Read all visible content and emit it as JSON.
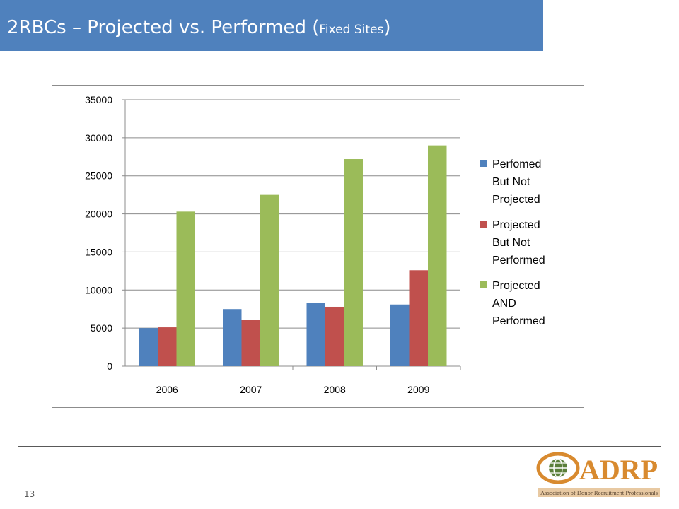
{
  "slide": {
    "title_main": "2RBCs – Projected vs. Performed (",
    "title_small": "Fixed Sites",
    "title_close": ")",
    "page_number": "13"
  },
  "logo": {
    "text": "ADRP",
    "tagline": "Association of Donor Recruitment Professionals"
  },
  "colors": {
    "title_bar": "#4f81bd",
    "series": [
      "#4f81bd",
      "#c0504d",
      "#9bbb59"
    ]
  },
  "chart_data": {
    "type": "bar",
    "title": "",
    "xlabel": "",
    "ylabel": "",
    "categories": [
      "2006",
      "2007",
      "2008",
      "2009"
    ],
    "ylim": [
      0,
      35000
    ],
    "yticks": [
      0,
      5000,
      10000,
      15000,
      20000,
      25000,
      30000,
      35000
    ],
    "grid": true,
    "legend_position": "right",
    "series": [
      {
        "name": "Perfomed But Not Projected",
        "legend_lines": [
          "Perfomed",
          "But Not",
          "Projected"
        ],
        "values": [
          5000,
          7500,
          8300,
          8100
        ]
      },
      {
        "name": "Projected But Not Performed",
        "legend_lines": [
          "Projected",
          "But Not",
          "Performed"
        ],
        "values": [
          5100,
          6100,
          7800,
          12600
        ]
      },
      {
        "name": "Projected AND Performed",
        "legend_lines": [
          "Projected",
          "AND",
          "Performed"
        ],
        "values": [
          20300,
          22500,
          27200,
          29000
        ]
      }
    ]
  }
}
